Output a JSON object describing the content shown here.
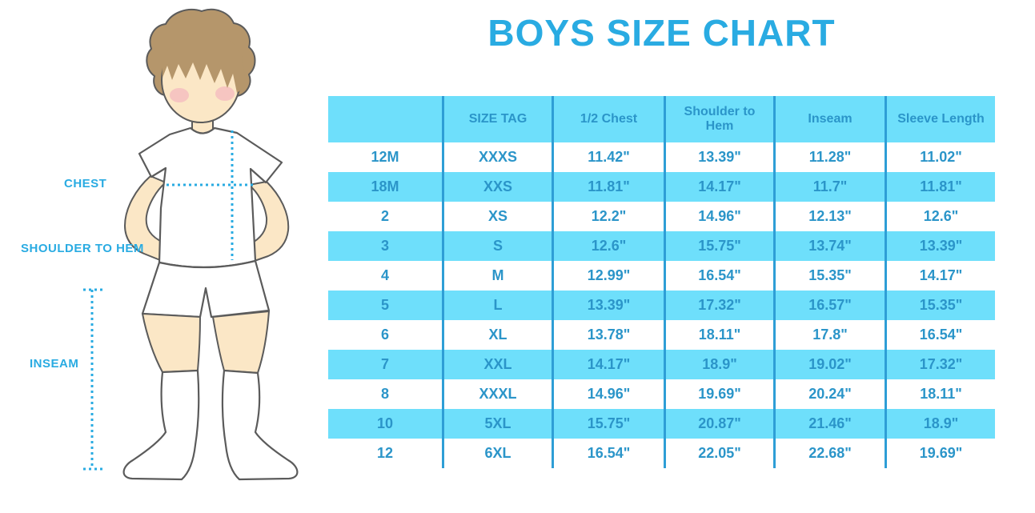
{
  "title": "BOYS SIZE CHART",
  "measurement_labels": {
    "chest": "CHEST",
    "shoulder_to_hem": "SHOULDER TO HEM",
    "inseam": "INSEAM"
  },
  "chart_data": {
    "type": "table",
    "title": "BOYS SIZE CHART",
    "columns": [
      "",
      "SIZE TAG",
      "1/2 Chest",
      "Shoulder to Hem",
      "Inseam",
      "Sleeve Length"
    ],
    "rows": [
      [
        "12M",
        "XXXS",
        "11.42\"",
        "13.39\"",
        "11.28\"",
        "11.02\""
      ],
      [
        "18M",
        "XXS",
        "11.81\"",
        "14.17\"",
        "11.7\"",
        "11.81\""
      ],
      [
        "2",
        "XS",
        "12.2\"",
        "14.96\"",
        "12.13\"",
        "12.6\""
      ],
      [
        "3",
        "S",
        "12.6\"",
        "15.75\"",
        "13.74\"",
        "13.39\""
      ],
      [
        "4",
        "M",
        "12.99\"",
        "16.54\"",
        "15.35\"",
        "14.17\""
      ],
      [
        "5",
        "L",
        "13.39\"",
        "17.32\"",
        "16.57\"",
        "15.35\""
      ],
      [
        "6",
        "XL",
        "13.78\"",
        "18.11\"",
        "17.8\"",
        "16.54\""
      ],
      [
        "7",
        "XXL",
        "14.17\"",
        "18.9\"",
        "19.02\"",
        "17.32\""
      ],
      [
        "8",
        "XXXL",
        "14.96\"",
        "19.69\"",
        "20.24\"",
        "18.11\""
      ],
      [
        "10",
        "5XL",
        "15.75\"",
        "20.87\"",
        "21.46\"",
        "18.9\""
      ],
      [
        "12",
        "6XL",
        "16.54\"",
        "22.05\"",
        "22.68\"",
        "19.69\""
      ]
    ],
    "row_band_pattern": "alternating, bands on rows 18M, 3, 5, 7, 10",
    "legend_position": "none",
    "grid": "vertical column separators only"
  },
  "colors": {
    "accent": "#29ABE2",
    "band": "#6EDFFB",
    "grid": "#2E9ED6",
    "text-blue": "#2B95C9",
    "skin": "#FBE7C6",
    "hair": "#B5966B",
    "blush": "#F2A9BE",
    "outline": "#5B5B5B"
  }
}
